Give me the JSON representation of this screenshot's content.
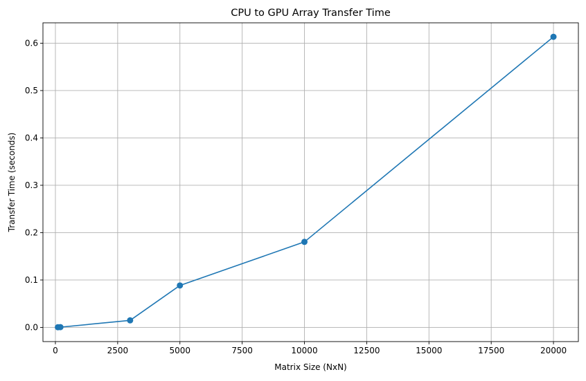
{
  "chart_data": {
    "type": "line",
    "title": "CPU to GPU Array Transfer Time",
    "xlabel": "Matrix Size (NxN)",
    "ylabel": "Transfer Time (seconds)",
    "xlim": [
      -500,
      21000
    ],
    "ylim": [
      -0.03,
      0.643
    ],
    "xticks": [
      0,
      2500,
      5000,
      7500,
      10000,
      12500,
      15000,
      17500,
      20000
    ],
    "yticks": [
      0.0,
      0.1,
      0.2,
      0.3,
      0.4,
      0.5,
      0.6
    ],
    "grid": true,
    "color": "#1f77b4",
    "series": [
      {
        "x": [
          100,
          200,
          3000,
          5000,
          10000,
          20000
        ],
        "y": [
          0.0003,
          0.0005,
          0.0148,
          0.0885,
          0.1805,
          0.6135
        ]
      }
    ]
  }
}
